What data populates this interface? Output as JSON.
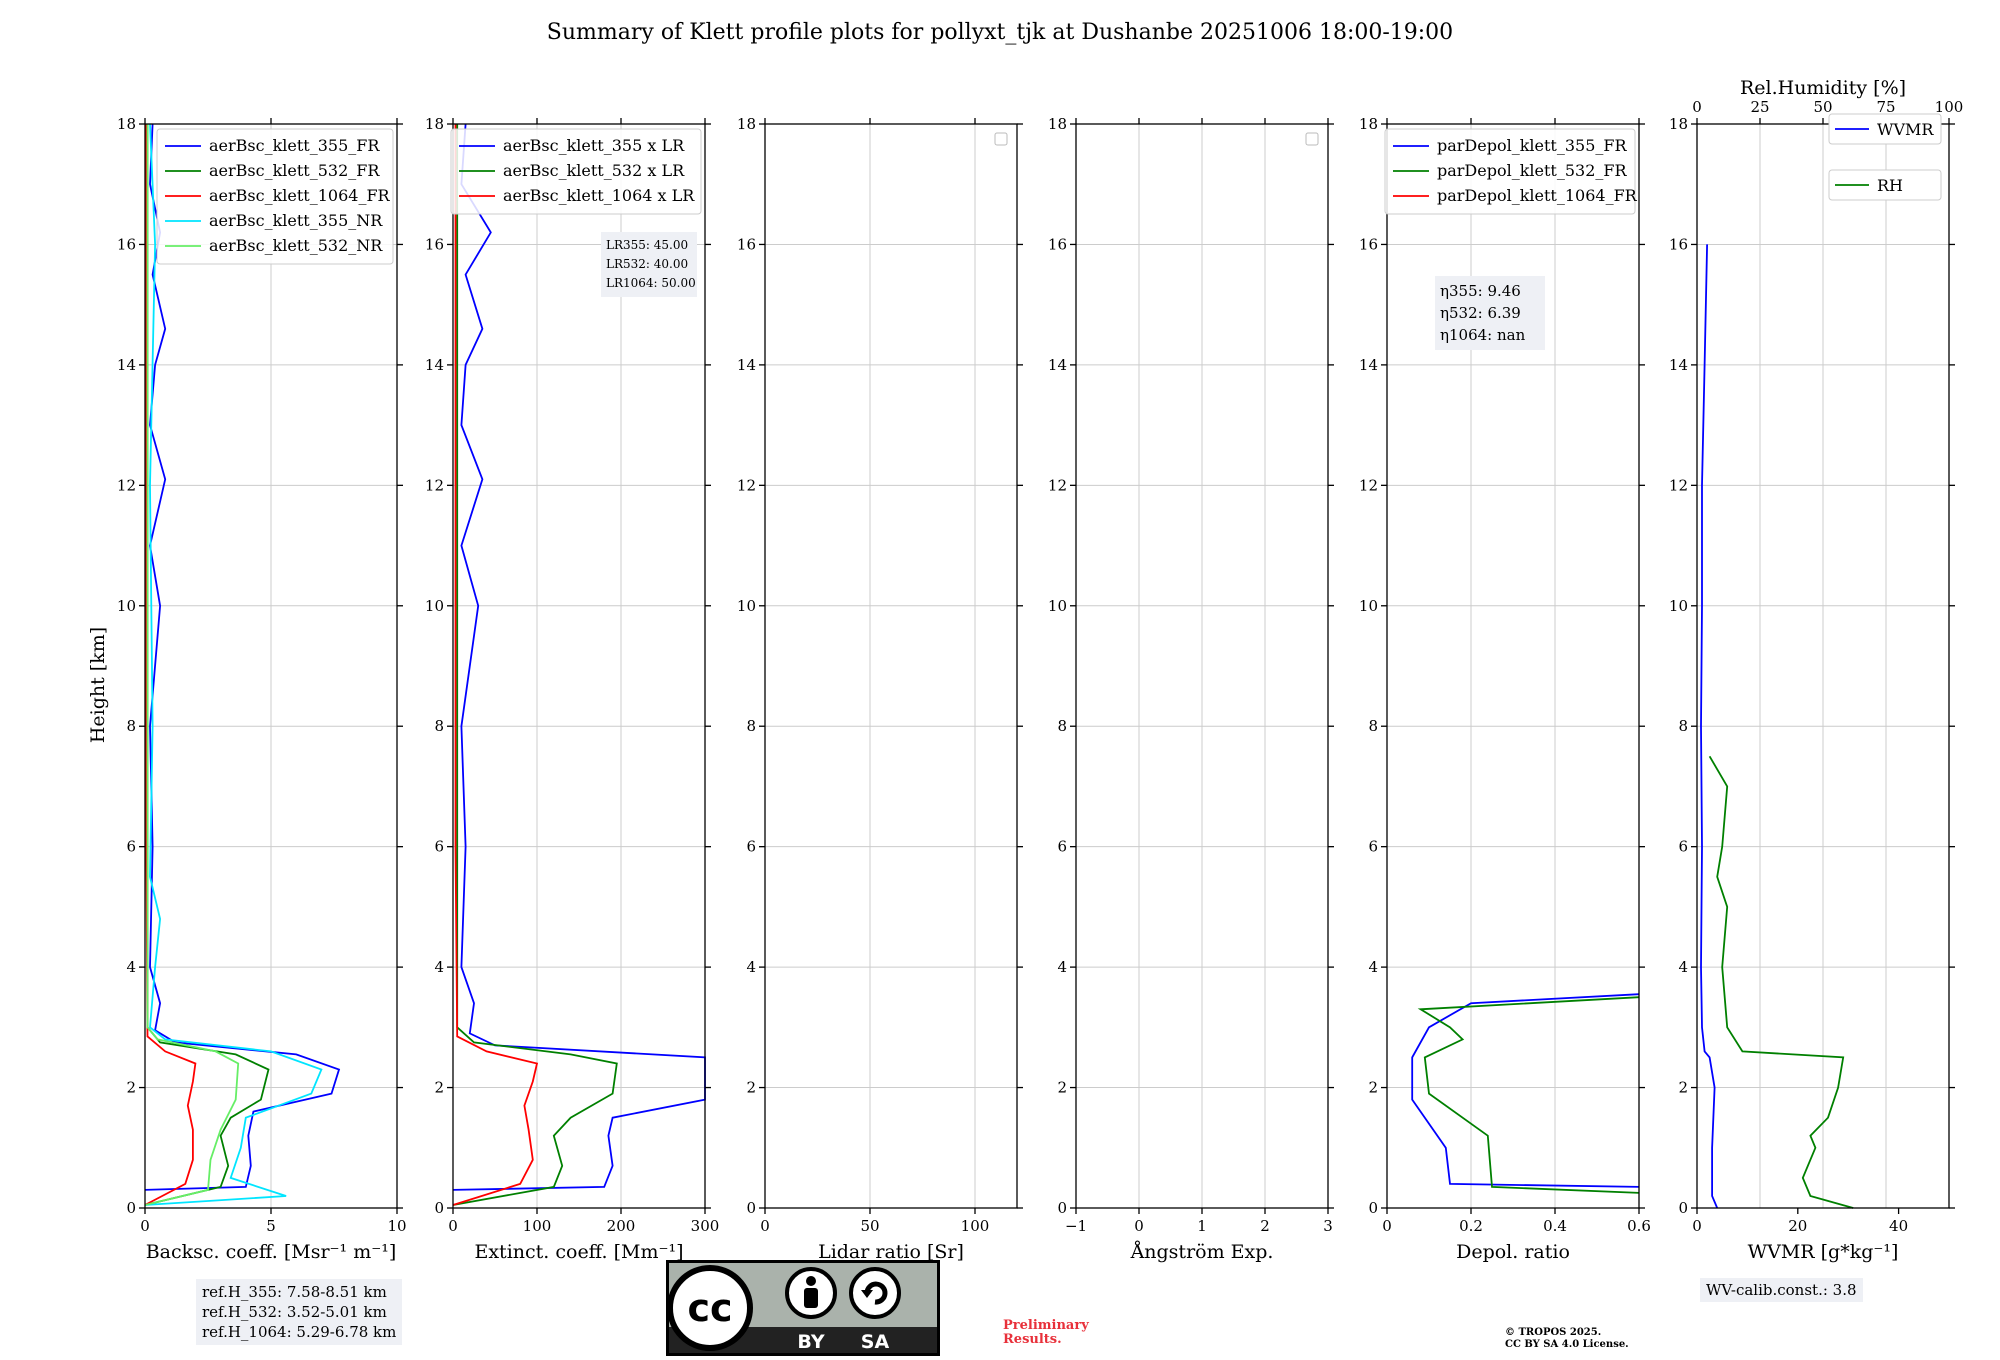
{
  "title": "Summary of Klett profile plots for pollyxt_tjk at Dushanbe 20251006 18:00-19:00",
  "ylabel": "Height [km]",
  "yticks": [
    "0",
    "2",
    "4",
    "6",
    "8",
    "10",
    "12",
    "14",
    "16",
    "18"
  ],
  "ref_heights": [
    "ref.H_355: 7.58-8.51 km",
    "ref.H_532: 3.52-5.01 km",
    "ref.H_1064: 5.29-6.78 km"
  ],
  "wv_calib": "WV-calib.const.: 3.8",
  "preliminary": [
    "Preliminary",
    "Results."
  ],
  "copyright": [
    "© TROPOS 2025.",
    "CC BY SA 4.0 License."
  ],
  "cc_badge": {
    "cc": "cc",
    "by": "BY",
    "sa": "SA"
  },
  "chart_data": [
    {
      "type": "line",
      "id": "backscatter",
      "xlabel": "Backsc. coeff. [Msr⁻¹ m⁻¹]",
      "xlim": [
        0,
        10
      ],
      "xticks": [
        0,
        5,
        10
      ],
      "ylim": [
        0,
        18
      ],
      "legend": "top-right",
      "series": [
        {
          "name": "aerBsc_klett_355_FR",
          "color": "#0000ff",
          "points": [
            [
              0,
              0.3
            ],
            [
              4.0,
              0.35
            ],
            [
              4.2,
              0.7
            ],
            [
              4.1,
              1.2
            ],
            [
              4.3,
              1.6
            ],
            [
              7.4,
              1.9
            ],
            [
              7.7,
              2.3
            ],
            [
              6.0,
              2.55
            ],
            [
              1.2,
              2.75
            ],
            [
              0.4,
              2.95
            ],
            [
              0.6,
              3.4
            ],
            [
              0.2,
              4.0
            ],
            [
              0.3,
              6.0
            ],
            [
              0.2,
              8.0
            ],
            [
              0.6,
              10.0
            ],
            [
              0.2,
              11.0
            ],
            [
              0.8,
              12.1
            ],
            [
              0.2,
              13.0
            ],
            [
              0.4,
              14.0
            ],
            [
              0.8,
              14.6
            ],
            [
              0.3,
              15.5
            ],
            [
              0.6,
              16.2
            ],
            [
              0.2,
              17.0
            ],
            [
              0.3,
              18.0
            ]
          ]
        },
        {
          "name": "aerBsc_klett_532_FR",
          "color": "#008000",
          "points": [
            [
              0,
              0.05
            ],
            [
              3.0,
              0.35
            ],
            [
              3.3,
              0.7
            ],
            [
              3.0,
              1.2
            ],
            [
              3.4,
              1.5
            ],
            [
              4.6,
              1.8
            ],
            [
              4.9,
              2.3
            ],
            [
              3.6,
              2.55
            ],
            [
              0.6,
              2.75
            ],
            [
              0.1,
              3.0
            ],
            [
              0.1,
              6.0
            ],
            [
              0.1,
              10.0
            ],
            [
              0.1,
              14.0
            ],
            [
              0.1,
              18.0
            ]
          ]
        },
        {
          "name": "aerBsc_klett_1064_FR",
          "color": "#ff0000",
          "points": [
            [
              0,
              0.05
            ],
            [
              1.6,
              0.4
            ],
            [
              1.9,
              0.8
            ],
            [
              1.9,
              1.3
            ],
            [
              1.7,
              1.7
            ],
            [
              1.9,
              2.1
            ],
            [
              2.0,
              2.4
            ],
            [
              0.8,
              2.6
            ],
            [
              0.1,
              2.85
            ],
            [
              0.05,
              6.0
            ],
            [
              0.05,
              12.0
            ],
            [
              0.05,
              18.0
            ]
          ]
        },
        {
          "name": "aerBsc_klett_355_NR",
          "color": "#00e5ff",
          "points": [
            [
              0,
              0.05
            ],
            [
              5.6,
              0.2
            ],
            [
              3.4,
              0.5
            ],
            [
              3.8,
              1.0
            ],
            [
              4.0,
              1.5
            ],
            [
              6.6,
              1.9
            ],
            [
              7.0,
              2.3
            ],
            [
              5.0,
              2.6
            ],
            [
              0.8,
              2.8
            ],
            [
              0.2,
              3.0
            ],
            [
              0.4,
              4.0
            ],
            [
              0.6,
              4.8
            ],
            [
              0.2,
              5.5
            ],
            [
              0.3,
              8.0
            ],
            [
              0.2,
              12.0
            ],
            [
              0.4,
              16.0
            ],
            [
              0.2,
              18.0
            ]
          ]
        },
        {
          "name": "aerBsc_klett_532_NR",
          "color": "#66ee66",
          "points": [
            [
              0,
              0.05
            ],
            [
              2.5,
              0.3
            ],
            [
              2.6,
              0.8
            ],
            [
              3.0,
              1.3
            ],
            [
              3.6,
              1.8
            ],
            [
              3.7,
              2.4
            ],
            [
              2.8,
              2.6
            ],
            [
              0.5,
              2.8
            ],
            [
              0.1,
              3.0
            ],
            [
              0.1,
              8.0
            ],
            [
              0.1,
              18.0
            ]
          ]
        }
      ],
      "annotation": []
    },
    {
      "type": "line",
      "id": "extinction",
      "xlabel": "Extinct. coeff. [Mm⁻¹]",
      "xlim": [
        0,
        300
      ],
      "xticks": [
        0,
        100,
        200,
        300
      ],
      "ylim": [
        0,
        18
      ],
      "legend": "top-right",
      "series": [
        {
          "name": "aerBsc_klett_355 x LR",
          "color": "#0000ff",
          "points": [
            [
              0,
              0.3
            ],
            [
              180,
              0.35
            ],
            [
              190,
              0.7
            ],
            [
              185,
              1.2
            ],
            [
              190,
              1.5
            ],
            [
              300,
              1.8
            ],
            [
              300,
              2.2
            ],
            [
              300,
              2.5
            ],
            [
              50,
              2.7
            ],
            [
              20,
              2.9
            ],
            [
              25,
              3.4
            ],
            [
              10,
              4.0
            ],
            [
              15,
              6.0
            ],
            [
              10,
              8.0
            ],
            [
              30,
              10.0
            ],
            [
              10,
              11.0
            ],
            [
              35,
              12.1
            ],
            [
              10,
              13.0
            ],
            [
              15,
              14.0
            ],
            [
              35,
              14.6
            ],
            [
              15,
              15.5
            ],
            [
              45,
              16.2
            ],
            [
              10,
              17.0
            ],
            [
              15,
              18.0
            ]
          ]
        },
        {
          "name": "aerBsc_klett_532 x LR",
          "color": "#008000",
          "points": [
            [
              0,
              0.05
            ],
            [
              120,
              0.35
            ],
            [
              130,
              0.7
            ],
            [
              120,
              1.2
            ],
            [
              140,
              1.5
            ],
            [
              190,
              1.9
            ],
            [
              195,
              2.4
            ],
            [
              140,
              2.55
            ],
            [
              25,
              2.75
            ],
            [
              5,
              3.0
            ],
            [
              5,
              6.0
            ],
            [
              5,
              10.0
            ],
            [
              5,
              14.0
            ],
            [
              5,
              18.0
            ]
          ]
        },
        {
          "name": "aerBsc_klett_1064 x LR",
          "color": "#ff0000",
          "points": [
            [
              0,
              0.05
            ],
            [
              80,
              0.4
            ],
            [
              95,
              0.8
            ],
            [
              90,
              1.3
            ],
            [
              85,
              1.7
            ],
            [
              95,
              2.1
            ],
            [
              100,
              2.4
            ],
            [
              40,
              2.6
            ],
            [
              5,
              2.85
            ],
            [
              3,
              6.0
            ],
            [
              3,
              12.0
            ],
            [
              3,
              18.0
            ]
          ]
        }
      ],
      "annotation": [
        "LR355: 45.00",
        "LR532: 40.00",
        "LR1064: 50.00"
      ]
    },
    {
      "type": "line",
      "id": "lidar_ratio",
      "xlabel": "Lidar ratio [Sr]",
      "xlim": [
        0,
        120
      ],
      "xticks": [
        0,
        50,
        100
      ],
      "ylim": [
        0,
        18
      ],
      "legend": "top-right",
      "series": [],
      "annotation": []
    },
    {
      "type": "line",
      "id": "angstrom",
      "xlabel": "Ångström Exp.",
      "xlim": [
        -1,
        3
      ],
      "xticks": [
        -1,
        0,
        1,
        2,
        3
      ],
      "ylim": [
        0,
        18
      ],
      "legend": "top-right",
      "series": [],
      "annotation": []
    },
    {
      "type": "line",
      "id": "depol",
      "xlabel": "Depol. ratio",
      "xlim": [
        0,
        0.6
      ],
      "xticks": [
        0.0,
        0.2,
        0.4,
        0.6
      ],
      "ylim": [
        0,
        18
      ],
      "legend": "top-right",
      "series": [
        {
          "name": "parDepol_klett_355_FR",
          "color": "#0000ff",
          "points": [
            [
              0.6,
              0.35
            ],
            [
              0.15,
              0.4
            ],
            [
              0.14,
              1.0
            ],
            [
              0.06,
              1.8
            ],
            [
              0.06,
              2.5
            ],
            [
              0.1,
              3.0
            ],
            [
              0.2,
              3.4
            ],
            [
              0.6,
              3.55
            ]
          ]
        },
        {
          "name": "parDepol_klett_532_FR",
          "color": "#008000",
          "points": [
            [
              0.6,
              0.25
            ],
            [
              0.25,
              0.35
            ],
            [
              0.24,
              1.2
            ],
            [
              0.1,
              1.9
            ],
            [
              0.09,
              2.5
            ],
            [
              0.18,
              2.8
            ],
            [
              0.15,
              3.0
            ],
            [
              0.08,
              3.3
            ],
            [
              0.6,
              3.5
            ]
          ]
        },
        {
          "name": "parDepol_klett_1064_FR",
          "color": "#ff0000",
          "points": []
        }
      ],
      "annotation": [
        "η355: 9.46",
        "η532: 6.39",
        "η1064: nan"
      ]
    },
    {
      "type": "line",
      "id": "wvmr_rh",
      "xlabel": "WVMR [g*kg⁻¹]",
      "x2label": "Rel.Humidity [%]",
      "xlim": [
        0,
        50
      ],
      "xticks": [
        0,
        20,
        40
      ],
      "x2lim": [
        0,
        100
      ],
      "x2ticks": [
        0,
        25,
        50,
        75,
        100
      ],
      "ylim": [
        0,
        18
      ],
      "legend": "top-right",
      "series": [
        {
          "name": "WVMR",
          "color": "#0000ff",
          "points": [
            [
              4,
              0.0
            ],
            [
              3,
              0.2
            ],
            [
              3,
              1.0
            ],
            [
              3.5,
              2.0
            ],
            [
              2.5,
              2.5
            ],
            [
              1.5,
              2.6
            ],
            [
              1,
              3.0
            ],
            [
              0.8,
              4.0
            ],
            [
              1,
              6.0
            ],
            [
              0.8,
              8.0
            ],
            [
              1,
              10.0
            ],
            [
              1,
              12.0
            ],
            [
              1.5,
              14.0
            ],
            [
              2,
              16.0
            ]
          ]
        },
        {
          "name": "RH",
          "color": "#008000",
          "points": [
            [
              62,
              0.0
            ],
            [
              45,
              0.2
            ],
            [
              42,
              0.5
            ],
            [
              47,
              1.0
            ],
            [
              45,
              1.2
            ],
            [
              52,
              1.5
            ],
            [
              56,
              2.0
            ],
            [
              58,
              2.5
            ],
            [
              18,
              2.6
            ],
            [
              12,
              3.0
            ],
            [
              10,
              4.0
            ],
            [
              12,
              5.0
            ],
            [
              8,
              5.5
            ],
            [
              10,
              6.0
            ],
            [
              12,
              7.0
            ],
            [
              5,
              7.5
            ]
          ]
        }
      ],
      "annotation": []
    }
  ]
}
